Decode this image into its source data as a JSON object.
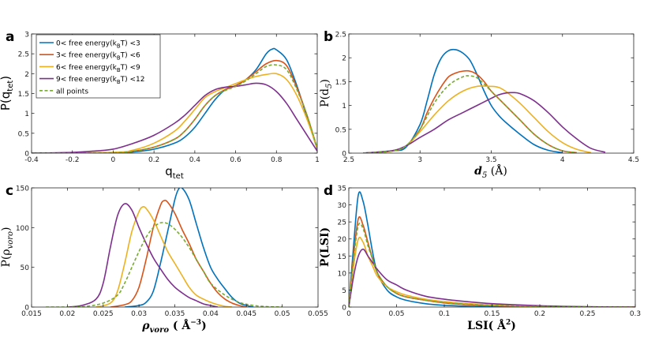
{
  "chart_data": [
    {
      "type": "line",
      "panel": "a",
      "xlabel": "q",
      "xlabel_sub": "tet",
      "ylabel": "P(q",
      "ylabel_sub": "tet",
      "ylabel_tail": ")",
      "xlim": [
        -0.4,
        1
      ],
      "ylim": [
        0,
        3
      ],
      "xticks": [
        "-0.4",
        "-0.2",
        "0",
        "0.2",
        "0.4",
        "0.6",
        "0.8",
        "1"
      ],
      "yticks": [
        "0",
        "0.5",
        "1",
        "1.5",
        "2",
        "2.5",
        "3"
      ],
      "legend": {
        "placement": "top-left",
        "entries": [
          {
            "pre": "0< free energy(k",
            "sub": "B",
            "post": "T) <3"
          },
          {
            "pre": "3< free energy(k",
            "sub": "B",
            "post": "T) <6"
          },
          {
            "pre": "6< free energy(k",
            "sub": "B",
            "post": "T) <9"
          },
          {
            "pre": "9< free energy(k",
            "sub": "B",
            "post": "T) <12"
          },
          {
            "pre": "all points",
            "sub": "",
            "post": ""
          }
        ]
      },
      "series": [
        {
          "name": "0< free energy(kBT) <3",
          "color": "#0072BD",
          "dash": false,
          "x": [
            -0.4,
            0.0,
            0.1,
            0.2,
            0.3,
            0.35,
            0.4,
            0.45,
            0.5,
            0.55,
            0.6,
            0.65,
            0.7,
            0.75,
            0.78,
            0.8,
            0.85,
            0.9,
            0.95,
            1.0
          ],
          "y": [
            0,
            0.005,
            0.03,
            0.1,
            0.25,
            0.4,
            0.65,
            1.0,
            1.35,
            1.6,
            1.7,
            1.85,
            2.1,
            2.5,
            2.62,
            2.6,
            2.35,
            1.7,
            0.9,
            0.1
          ]
        },
        {
          "name": "3< free energy(kBT) <6",
          "color": "#D95319",
          "dash": false,
          "x": [
            -0.4,
            0.0,
            0.1,
            0.2,
            0.3,
            0.35,
            0.4,
            0.45,
            0.5,
            0.55,
            0.6,
            0.65,
            0.7,
            0.75,
            0.8,
            0.85,
            0.9,
            0.95,
            1.0
          ],
          "y": [
            0,
            0.01,
            0.05,
            0.15,
            0.35,
            0.55,
            0.85,
            1.2,
            1.45,
            1.6,
            1.7,
            1.85,
            2.05,
            2.25,
            2.33,
            2.2,
            1.65,
            0.95,
            0.12
          ]
        },
        {
          "name": "6< free energy(kBT) <9",
          "color": "#EDB120",
          "dash": false,
          "x": [
            -0.4,
            0.0,
            0.1,
            0.2,
            0.3,
            0.35,
            0.4,
            0.45,
            0.5,
            0.55,
            0.6,
            0.65,
            0.7,
            0.75,
            0.8,
            0.85,
            0.9,
            0.95,
            1.0
          ],
          "y": [
            0,
            0.02,
            0.08,
            0.25,
            0.55,
            0.8,
            1.1,
            1.4,
            1.55,
            1.65,
            1.75,
            1.85,
            1.93,
            1.98,
            2.0,
            1.85,
            1.45,
            0.85,
            0.12
          ]
        },
        {
          "name": "9< free energy(kBT) <12",
          "color": "#7E2F8E",
          "dash": false,
          "x": [
            -0.4,
            -0.2,
            -0.1,
            0.0,
            0.1,
            0.2,
            0.3,
            0.35,
            0.4,
            0.45,
            0.5,
            0.55,
            0.6,
            0.65,
            0.7,
            0.75,
            0.8,
            0.85,
            0.9,
            0.95,
            1.0
          ],
          "y": [
            0,
            0.02,
            0.05,
            0.1,
            0.25,
            0.45,
            0.75,
            0.95,
            1.2,
            1.45,
            1.6,
            1.66,
            1.68,
            1.72,
            1.76,
            1.72,
            1.55,
            1.25,
            0.85,
            0.45,
            0.05
          ]
        },
        {
          "name": "all points",
          "color": "#77AC30",
          "dash": true,
          "x": [
            -0.4,
            0.0,
            0.1,
            0.2,
            0.3,
            0.35,
            0.4,
            0.45,
            0.5,
            0.55,
            0.6,
            0.65,
            0.7,
            0.75,
            0.8,
            0.85,
            0.9,
            0.95,
            1.0
          ],
          "y": [
            0,
            0.01,
            0.05,
            0.15,
            0.35,
            0.55,
            0.85,
            1.2,
            1.45,
            1.58,
            1.68,
            1.82,
            2.0,
            2.18,
            2.22,
            2.1,
            1.6,
            0.95,
            0.12
          ]
        }
      ]
    },
    {
      "type": "line",
      "panel": "b",
      "xlabel": "d",
      "xlabel_sub": "5",
      "xlabel_tail": " (Å)",
      "ylabel": "P(d",
      "ylabel_sub": "5",
      "ylabel_tail": ")",
      "xlim": [
        2.5,
        4.5
      ],
      "ylim": [
        0,
        2.5
      ],
      "xticks": [
        "2.5",
        "3",
        "3.5",
        "4",
        "4.5"
      ],
      "yticks": [
        "0",
        "0.5",
        "1",
        "1.5",
        "2",
        "2.5"
      ],
      "series": [
        {
          "name": "0< free energy(kBT) <3",
          "color": "#0072BD",
          "dash": false,
          "x": [
            2.6,
            2.8,
            2.9,
            3.0,
            3.05,
            3.1,
            3.15,
            3.2,
            3.25,
            3.3,
            3.35,
            3.4,
            3.45,
            3.5,
            3.55,
            3.6,
            3.7,
            3.8,
            3.9,
            4.0
          ],
          "y": [
            0,
            0.05,
            0.12,
            0.6,
            1.1,
            1.65,
            2.0,
            2.15,
            2.17,
            2.1,
            1.95,
            1.65,
            1.3,
            1.0,
            0.8,
            0.65,
            0.4,
            0.18,
            0.06,
            0.01
          ]
        },
        {
          "name": "3< free energy(kBT) <6",
          "color": "#D95319",
          "dash": false,
          "x": [
            2.6,
            2.8,
            2.9,
            3.0,
            3.05,
            3.1,
            3.15,
            3.2,
            3.25,
            3.3,
            3.35,
            3.4,
            3.45,
            3.5,
            3.55,
            3.6,
            3.7,
            3.8,
            3.9,
            4.0,
            4.1
          ],
          "y": [
            0,
            0.04,
            0.15,
            0.5,
            0.85,
            1.15,
            1.4,
            1.6,
            1.68,
            1.72,
            1.72,
            1.65,
            1.5,
            1.3,
            1.15,
            1.0,
            0.7,
            0.4,
            0.18,
            0.05,
            0.01
          ]
        },
        {
          "name": "6< free energy(kBT) <9",
          "color": "#EDB120",
          "dash": false,
          "x": [
            2.6,
            2.8,
            2.9,
            3.0,
            3.1,
            3.2,
            3.3,
            3.4,
            3.5,
            3.55,
            3.6,
            3.7,
            3.8,
            3.9,
            4.0,
            4.1,
            4.2
          ],
          "y": [
            0,
            0.05,
            0.15,
            0.45,
            0.8,
            1.1,
            1.3,
            1.4,
            1.4,
            1.38,
            1.3,
            1.05,
            0.75,
            0.45,
            0.22,
            0.08,
            0.01
          ]
        },
        {
          "name": "9< free energy(kBT) <12",
          "color": "#7E2F8E",
          "dash": false,
          "x": [
            2.6,
            2.8,
            2.9,
            3.0,
            3.1,
            3.2,
            3.3,
            3.4,
            3.5,
            3.55,
            3.6,
            3.65,
            3.7,
            3.8,
            3.9,
            4.0,
            4.1,
            4.2,
            4.3
          ],
          "y": [
            0,
            0.05,
            0.15,
            0.33,
            0.5,
            0.7,
            0.85,
            1.0,
            1.15,
            1.22,
            1.26,
            1.27,
            1.25,
            1.1,
            0.85,
            0.55,
            0.3,
            0.1,
            0.02
          ]
        },
        {
          "name": "all points",
          "color": "#77AC30",
          "dash": true,
          "x": [
            2.6,
            2.8,
            2.9,
            3.0,
            3.1,
            3.2,
            3.3,
            3.35,
            3.4,
            3.45,
            3.5,
            3.6,
            3.7,
            3.8,
            3.9,
            4.0,
            4.1
          ],
          "y": [
            0,
            0.04,
            0.15,
            0.5,
            1.05,
            1.42,
            1.6,
            1.62,
            1.58,
            1.45,
            1.3,
            1.0,
            0.7,
            0.4,
            0.18,
            0.05,
            0.01
          ]
        }
      ]
    },
    {
      "type": "line",
      "panel": "c",
      "xlabel": "ρ",
      "xlabel_sub": "voro",
      "xlabel_tail": " ( Å",
      "xlabel_sup": "−3",
      "xlabel_end": ")",
      "ylabel": "P(ρ",
      "ylabel_sub": "voro",
      "ylabel_tail": ")",
      "xlim": [
        0.015,
        0.055
      ],
      "ylim": [
        0,
        150
      ],
      "xticks": [
        "0.015",
        "0.02",
        "0.025",
        "0.03",
        "0.035",
        "0.04",
        "0.045",
        "0.05",
        "0.055"
      ],
      "yticks": [
        "0",
        "50",
        "100",
        "150"
      ],
      "series": [
        {
          "name": "0< free energy(kBT) <3",
          "color": "#0072BD",
          "dash": false,
          "x": [
            0.028,
            0.03,
            0.031,
            0.032,
            0.033,
            0.034,
            0.035,
            0.0355,
            0.036,
            0.037,
            0.038,
            0.039,
            0.04,
            0.041,
            0.042,
            0.043,
            0.044,
            0.045,
            0.046
          ],
          "y": [
            0,
            2,
            6,
            20,
            55,
            95,
            135,
            148,
            150,
            135,
            105,
            75,
            50,
            35,
            23,
            12,
            5,
            2,
            0
          ]
        },
        {
          "name": "3< free energy(kBT) <6",
          "color": "#D95319",
          "dash": false,
          "x": [
            0.026,
            0.028,
            0.029,
            0.03,
            0.031,
            0.032,
            0.033,
            0.0335,
            0.034,
            0.035,
            0.036,
            0.037,
            0.038,
            0.039,
            0.04,
            0.041,
            0.042,
            0.043,
            0.044,
            0.045
          ],
          "y": [
            0,
            3,
            8,
            25,
            60,
            100,
            128,
            134,
            132,
            118,
            98,
            80,
            60,
            45,
            30,
            18,
            10,
            5,
            2,
            0
          ]
        },
        {
          "name": "6< free energy(kBT) <9",
          "color": "#EDB120",
          "dash": false,
          "x": [
            0.024,
            0.026,
            0.027,
            0.028,
            0.029,
            0.03,
            0.0305,
            0.031,
            0.032,
            0.033,
            0.034,
            0.035,
            0.036,
            0.037,
            0.038,
            0.039,
            0.04,
            0.041,
            0.042,
            0.043
          ],
          "y": [
            0,
            5,
            20,
            55,
            95,
            120,
            126,
            124,
            110,
            90,
            70,
            55,
            40,
            25,
            15,
            10,
            6,
            3,
            1,
            0
          ]
        },
        {
          "name": "9< free energy(kBT) <12",
          "color": "#7E2F8E",
          "dash": false,
          "x": [
            0.02,
            0.022,
            0.024,
            0.025,
            0.026,
            0.027,
            0.028,
            0.029,
            0.03,
            0.031,
            0.032,
            0.033,
            0.034,
            0.035,
            0.036,
            0.037,
            0.038,
            0.039,
            0.04,
            0.041
          ],
          "y": [
            0,
            2,
            10,
            30,
            75,
            115,
            130,
            122,
            100,
            80,
            62,
            48,
            35,
            25,
            18,
            12,
            8,
            4,
            2,
            0
          ]
        },
        {
          "name": "all points",
          "color": "#77AC30",
          "dash": true,
          "x": [
            0.017,
            0.022,
            0.025,
            0.027,
            0.028,
            0.029,
            0.03,
            0.031,
            0.032,
            0.033,
            0.034,
            0.035,
            0.036,
            0.037,
            0.038,
            0.039,
            0.04,
            0.042,
            0.044,
            0.046,
            0.048,
            0.05
          ],
          "y": [
            0,
            0.5,
            5,
            15,
            30,
            50,
            70,
            88,
            100,
            106,
            105,
            98,
            88,
            75,
            60,
            45,
            30,
            15,
            6,
            2,
            0.5,
            0
          ]
        }
      ]
    },
    {
      "type": "line",
      "panel": "d",
      "xlabel": "LSI( Å",
      "xlabel_sup": "2",
      "xlabel_end": ")",
      "ylabel": "P(LSI)",
      "xlim": [
        0,
        0.3
      ],
      "ylim": [
        0,
        35
      ],
      "xticks": [
        "0",
        "0.05",
        "0.1",
        "0.15",
        "0.2",
        "0.25",
        "0.3"
      ],
      "yticks": [
        "0",
        "5",
        "10",
        "15",
        "20",
        "25",
        "30",
        "35"
      ],
      "series": [
        {
          "name": "0< free energy(kBT) <3",
          "color": "#0072BD",
          "dash": false,
          "x": [
            0.0,
            0.005,
            0.01,
            0.015,
            0.02,
            0.025,
            0.03,
            0.04,
            0.05,
            0.06,
            0.08,
            0.1,
            0.12,
            0.15,
            0.2,
            0.3
          ],
          "y": [
            0,
            18,
            33,
            31,
            24,
            16,
            10,
            5,
            3,
            2,
            1,
            0.5,
            0.3,
            0.1,
            0,
            0
          ]
        },
        {
          "name": "3< free energy(kBT) <6",
          "color": "#D95319",
          "dash": false,
          "x": [
            0.0,
            0.005,
            0.01,
            0.015,
            0.02,
            0.025,
            0.03,
            0.04,
            0.05,
            0.06,
            0.08,
            0.1,
            0.12,
            0.15,
            0.2,
            0.25,
            0.3
          ],
          "y": [
            0,
            15,
            26,
            24,
            19,
            14,
            10,
            6,
            4,
            3,
            2,
            1.2,
            0.8,
            0.4,
            0.1,
            0,
            0
          ]
        },
        {
          "name": "6< free energy(kBT) <9",
          "color": "#EDB120",
          "dash": false,
          "x": [
            0.0,
            0.005,
            0.01,
            0.015,
            0.02,
            0.025,
            0.03,
            0.04,
            0.05,
            0.06,
            0.08,
            0.1,
            0.12,
            0.15,
            0.2,
            0.25,
            0.3
          ],
          "y": [
            0,
            12,
            20,
            19,
            15,
            12,
            9,
            6,
            4.5,
            3.5,
            2.3,
            1.6,
            1.1,
            0.6,
            0.2,
            0.05,
            0
          ]
        },
        {
          "name": "9< free energy(kBT) <12",
          "color": "#7E2F8E",
          "dash": false,
          "x": [
            0.0,
            0.005,
            0.01,
            0.015,
            0.02,
            0.025,
            0.03,
            0.04,
            0.05,
            0.06,
            0.08,
            0.1,
            0.12,
            0.15,
            0.2,
            0.25,
            0.3
          ],
          "y": [
            0,
            9,
            15,
            17,
            15,
            13,
            11,
            8,
            6.5,
            5,
            3.2,
            2.3,
            1.7,
            1.0,
            0.4,
            0.1,
            0
          ]
        },
        {
          "name": "all points",
          "color": "#77AC30",
          "dash": true,
          "x": [
            0.0,
            0.005,
            0.01,
            0.015,
            0.02,
            0.025,
            0.03,
            0.04,
            0.05,
            0.06,
            0.08,
            0.1,
            0.12,
            0.15,
            0.2,
            0.25,
            0.3
          ],
          "y": [
            0,
            14,
            24,
            23,
            18,
            14,
            10,
            6,
            4,
            3,
            2,
            1.3,
            0.9,
            0.5,
            0.15,
            0.03,
            0
          ]
        }
      ]
    }
  ]
}
